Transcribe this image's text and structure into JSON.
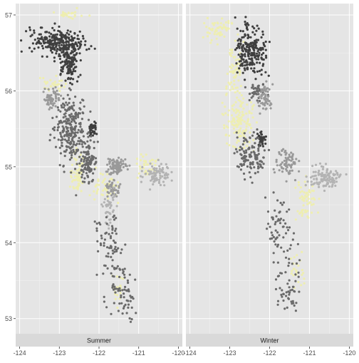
{
  "chart_data": {
    "type": "scatter",
    "subtype": "faceted map",
    "title": "",
    "xlabel": "",
    "ylabel": "",
    "xlim": [
      -124.1,
      -119.9
    ],
    "ylim": [
      52.8,
      57.15
    ],
    "x_ticks": [
      -124,
      -123,
      -122,
      -121,
      -120
    ],
    "x_tick_labels": [
      "-124",
      "-123",
      "-122",
      "-121",
      "-120"
    ],
    "y_ticks": [
      53,
      54,
      55,
      56,
      57
    ],
    "y_tick_labels": [
      "53",
      "54",
      "55",
      "56",
      "57"
    ],
    "grid": true,
    "legend": "none",
    "facet_strip_position": "bottom",
    "colors": {
      "panel_background": "#e5e5e5",
      "grid": "#ffffff",
      "strip_background": "#d9d9d9",
      "levels": [
        "#3f3f3f",
        "#6a6a6a",
        "#999999",
        "#b3b3b3",
        "#eeeeb0"
      ]
    },
    "facets": [
      {
        "label": "Summer",
        "regions": [
          {
            "color": "#eeeeb0",
            "center": [
              -122.55,
              54.9
            ],
            "spread": [
              0.18,
              0.25
            ],
            "n": 70
          },
          {
            "color": "#eeeeb0",
            "center": [
              -121.9,
              54.75
            ],
            "spread": [
              0.35,
              0.15
            ],
            "n": 50
          },
          {
            "color": "#eeeeb0",
            "center": [
              -120.7,
              55.0
            ],
            "spread": [
              0.3,
              0.15
            ],
            "n": 40
          },
          {
            "color": "#eeeeb0",
            "center": [
              -123.2,
              56.1
            ],
            "spread": [
              0.3,
              0.1
            ],
            "n": 30
          },
          {
            "color": "#eeeeb0",
            "center": [
              -122.7,
              57.0
            ],
            "spread": [
              0.35,
              0.05
            ],
            "n": 25
          },
          {
            "color": "#eeeeb0",
            "center": [
              -121.5,
              53.45
            ],
            "spread": [
              0.15,
              0.2
            ],
            "n": 20
          },
          {
            "color": "#3f3f3f",
            "center": [
              -123.05,
              56.65
            ],
            "spread": [
              0.6,
              0.15
            ],
            "n": 250
          },
          {
            "color": "#3f3f3f",
            "center": [
              -122.75,
              56.35
            ],
            "spread": [
              0.25,
              0.2
            ],
            "n": 120
          },
          {
            "color": "#3f3f3f",
            "center": [
              -122.15,
              55.5
            ],
            "spread": [
              0.08,
              0.07
            ],
            "n": 40
          },
          {
            "color": "#6a6a6a",
            "center": [
              -122.7,
              55.5
            ],
            "spread": [
              0.35,
              0.35
            ],
            "n": 250
          },
          {
            "color": "#6a6a6a",
            "center": [
              -122.3,
              55.05
            ],
            "spread": [
              0.2,
              0.25
            ],
            "n": 120
          },
          {
            "color": "#999999",
            "center": [
              -123.2,
              55.9
            ],
            "spread": [
              0.18,
              0.1
            ],
            "n": 60
          },
          {
            "color": "#999999",
            "center": [
              -121.55,
              55.0
            ],
            "spread": [
              0.2,
              0.1
            ],
            "n": 90
          },
          {
            "color": "#999999",
            "center": [
              -121.65,
              54.7
            ],
            "spread": [
              0.15,
              0.1
            ],
            "n": 40
          },
          {
            "color": "#b3b3b3",
            "center": [
              -120.55,
              54.9
            ],
            "spread": [
              0.3,
              0.12
            ],
            "n": 90
          },
          {
            "color": "#b3b3b3",
            "center": [
              -121.75,
              54.45
            ],
            "spread": [
              0.15,
              0.2
            ],
            "n": 40
          },
          {
            "color": "#6a6a6a",
            "center": [
              -121.75,
              54.05
            ],
            "spread": [
              0.3,
              0.3
            ],
            "n": 50
          },
          {
            "color": "#6a6a6a",
            "center": [
              -121.55,
              53.55
            ],
            "spread": [
              0.3,
              0.35
            ],
            "n": 55
          },
          {
            "color": "#6a6a6a",
            "center": [
              -121.25,
              53.25
            ],
            "spread": [
              0.2,
              0.2
            ],
            "n": 30
          }
        ]
      },
      {
        "label": "Winter",
        "regions": [
          {
            "color": "#eeeeb0",
            "center": [
              -123.3,
              56.8
            ],
            "spread": [
              0.3,
              0.12
            ],
            "n": 60
          },
          {
            "color": "#eeeeb0",
            "center": [
              -122.85,
              56.3
            ],
            "spread": [
              0.15,
              0.3
            ],
            "n": 60
          },
          {
            "color": "#eeeeb0",
            "center": [
              -122.75,
              55.6
            ],
            "spread": [
              0.35,
              0.3
            ],
            "n": 140
          },
          {
            "color": "#eeeeb0",
            "center": [
              -121.1,
              54.55
            ],
            "spread": [
              0.25,
              0.25
            ],
            "n": 60
          },
          {
            "color": "#eeeeb0",
            "center": [
              -121.3,
              53.6
            ],
            "spread": [
              0.2,
              0.25
            ],
            "n": 25
          },
          {
            "color": "#3f3f3f",
            "center": [
              -122.45,
              56.55
            ],
            "spread": [
              0.35,
              0.3
            ],
            "n": 220
          },
          {
            "color": "#3f3f3f",
            "center": [
              -122.2,
              55.35
            ],
            "spread": [
              0.1,
              0.1
            ],
            "n": 40
          },
          {
            "color": "#6a6a6a",
            "center": [
              -122.5,
              55.15
            ],
            "spread": [
              0.3,
              0.25
            ],
            "n": 120
          },
          {
            "color": "#6a6a6a",
            "center": [
              -122.3,
              56.0
            ],
            "spread": [
              0.2,
              0.1
            ],
            "n": 40
          },
          {
            "color": "#999999",
            "center": [
              -122.1,
              55.9
            ],
            "spread": [
              0.15,
              0.15
            ],
            "n": 60
          },
          {
            "color": "#999999",
            "center": [
              -121.55,
              55.05
            ],
            "spread": [
              0.25,
              0.15
            ],
            "n": 70
          },
          {
            "color": "#b3b3b3",
            "center": [
              -120.6,
              54.85
            ],
            "spread": [
              0.35,
              0.12
            ],
            "n": 110
          },
          {
            "color": "#6a6a6a",
            "center": [
              -121.75,
              54.15
            ],
            "spread": [
              0.3,
              0.35
            ],
            "n": 60
          },
          {
            "color": "#6a6a6a",
            "center": [
              -121.55,
              53.45
            ],
            "spread": [
              0.3,
              0.3
            ],
            "n": 55
          }
        ]
      }
    ]
  }
}
